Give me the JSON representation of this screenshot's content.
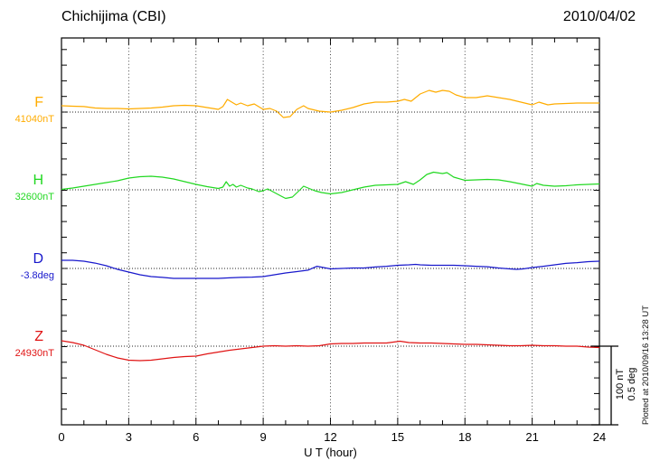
{
  "chart_data": {
    "type": "line",
    "title": "Chichijima (CBI)",
    "station_code": "CBI",
    "date": "2010/04/02",
    "xlabel": "U T (hour)",
    "xlim": [
      0,
      24
    ],
    "x_ticks": [
      0,
      3,
      6,
      9,
      12,
      15,
      18,
      21,
      24
    ],
    "x_minor_step_hours": 1,
    "grid": "dotted vertical lines every 3 hours; dotted horizontal baseline per trace",
    "legend_position": "left margin, one colored label per trace",
    "scale": {
      "division_nT": 100,
      "division_deg": 0.5,
      "labels": [
        "100 nT",
        "0.5 deg"
      ]
    },
    "annotations": {
      "scale_bar": [
        "100 nT",
        "0.5 deg"
      ],
      "plotted_at": "Plotted at 2010/09/16 13:28 UT"
    },
    "series": [
      {
        "name": "F",
        "unit": "nT",
        "baseline_label": "41040nT",
        "baseline_value": 41040,
        "color": "#ffac00",
        "points": [
          [
            0,
            8.0
          ],
          [
            0.5,
            7.5
          ],
          [
            1,
            7.0
          ],
          [
            1.5,
            5.2
          ],
          [
            2,
            4.6
          ],
          [
            2.5,
            4.6
          ],
          [
            3,
            4.0
          ],
          [
            3.5,
            4.6
          ],
          [
            4,
            5.2
          ],
          [
            4.5,
            6.3
          ],
          [
            5,
            8.0
          ],
          [
            5.5,
            8.6
          ],
          [
            6,
            8.0
          ],
          [
            6.5,
            5.7
          ],
          [
            7,
            3.4
          ],
          [
            7.2,
            7.0
          ],
          [
            7.4,
            16.1
          ],
          [
            7.6,
            12.6
          ],
          [
            7.8,
            9.2
          ],
          [
            8,
            11.5
          ],
          [
            8.3,
            8.0
          ],
          [
            8.6,
            10.3
          ],
          [
            9,
            3.4
          ],
          [
            9.3,
            4.6
          ],
          [
            9.6,
            1.1
          ],
          [
            9.9,
            -6.9
          ],
          [
            10.2,
            -5.7
          ],
          [
            10.5,
            3.4
          ],
          [
            10.8,
            8.0
          ],
          [
            11,
            4.6
          ],
          [
            11.5,
            1.1
          ],
          [
            12,
            0.0
          ],
          [
            12.5,
            2.3
          ],
          [
            13,
            5.7
          ],
          [
            13.5,
            10.3
          ],
          [
            14,
            12.6
          ],
          [
            14.5,
            12.6
          ],
          [
            15,
            13.8
          ],
          [
            15.3,
            16.1
          ],
          [
            15.6,
            13.8
          ],
          [
            16,
            23.0
          ],
          [
            16.4,
            27.6
          ],
          [
            16.7,
            25.3
          ],
          [
            17,
            27.6
          ],
          [
            17.3,
            26.4
          ],
          [
            17.6,
            21.8
          ],
          [
            18,
            18.4
          ],
          [
            18.5,
            18.4
          ],
          [
            19,
            20.7
          ],
          [
            19.5,
            18.4
          ],
          [
            20,
            16.1
          ],
          [
            20.5,
            12.6
          ],
          [
            21,
            9.2
          ],
          [
            21.3,
            12.6
          ],
          [
            21.7,
            9.2
          ],
          [
            22,
            10.3
          ],
          [
            22.5,
            10.9
          ],
          [
            23,
            11.5
          ],
          [
            23.5,
            11.5
          ],
          [
            24,
            11.5
          ]
        ]
      },
      {
        "name": "H",
        "unit": "nT",
        "baseline_label": "32600nT",
        "baseline_value": 32600,
        "color": "#22d822",
        "points": [
          [
            0,
            0.6
          ],
          [
            0.5,
            2.3
          ],
          [
            1,
            4.6
          ],
          [
            1.5,
            6.9
          ],
          [
            2,
            9.2
          ],
          [
            2.5,
            11.5
          ],
          [
            3,
            14.9
          ],
          [
            3.5,
            16.7
          ],
          [
            4,
            17.2
          ],
          [
            4.5,
            16.1
          ],
          [
            5,
            13.8
          ],
          [
            5.5,
            10.3
          ],
          [
            6,
            6.9
          ],
          [
            6.5,
            4.0
          ],
          [
            7,
            1.7
          ],
          [
            7.2,
            3.4
          ],
          [
            7.35,
            10.3
          ],
          [
            7.5,
            4.6
          ],
          [
            7.65,
            6.9
          ],
          [
            7.8,
            3.4
          ],
          [
            8,
            5.7
          ],
          [
            8.3,
            2.3
          ],
          [
            8.5,
            1.1
          ],
          [
            8.8,
            -2.3
          ],
          [
            9,
            -1.1
          ],
          [
            9.2,
            1.1
          ],
          [
            9.5,
            -3.4
          ],
          [
            9.8,
            -8.0
          ],
          [
            10,
            -10.9
          ],
          [
            10.3,
            -9.2
          ],
          [
            10.6,
            -1.1
          ],
          [
            10.8,
            4.6
          ],
          [
            11,
            2.3
          ],
          [
            11.3,
            -1.1
          ],
          [
            11.6,
            -3.4
          ],
          [
            12,
            -5.2
          ],
          [
            12.5,
            -3.4
          ],
          [
            13,
            0.0
          ],
          [
            13.5,
            3.4
          ],
          [
            14,
            5.7
          ],
          [
            14.5,
            6.3
          ],
          [
            15,
            6.9
          ],
          [
            15.35,
            10.3
          ],
          [
            15.7,
            6.9
          ],
          [
            16,
            12.6
          ],
          [
            16.3,
            19.5
          ],
          [
            16.6,
            22.4
          ],
          [
            17,
            20.7
          ],
          [
            17.2,
            21.8
          ],
          [
            17.5,
            16.1
          ],
          [
            18,
            12.1
          ],
          [
            18.5,
            12.6
          ],
          [
            19,
            13.2
          ],
          [
            19.5,
            12.6
          ],
          [
            20,
            10.3
          ],
          [
            20.5,
            7.5
          ],
          [
            21,
            4.6
          ],
          [
            21.2,
            8.0
          ],
          [
            21.5,
            5.7
          ],
          [
            22,
            4.6
          ],
          [
            22.5,
            5.2
          ],
          [
            23,
            6.3
          ],
          [
            23.5,
            6.9
          ],
          [
            24,
            7.5
          ]
        ]
      },
      {
        "name": "D",
        "unit": "deg",
        "baseline_label": "-3.8deg",
        "baseline_value": -3.8,
        "color": "#1818cc",
        "points": [
          [
            0,
            0.052
          ],
          [
            0.5,
            0.052
          ],
          [
            1,
            0.046
          ],
          [
            1.5,
            0.034
          ],
          [
            2,
            0.017
          ],
          [
            2.5,
            -0.006
          ],
          [
            3,
            -0.023
          ],
          [
            3.5,
            -0.04
          ],
          [
            4,
            -0.052
          ],
          [
            4.5,
            -0.057
          ],
          [
            5,
            -0.063
          ],
          [
            5.5,
            -0.063
          ],
          [
            6,
            -0.063
          ],
          [
            6.5,
            -0.063
          ],
          [
            7,
            -0.063
          ],
          [
            7.5,
            -0.06
          ],
          [
            8,
            -0.057
          ],
          [
            8.5,
            -0.055
          ],
          [
            9,
            -0.052
          ],
          [
            9.5,
            -0.04
          ],
          [
            10,
            -0.029
          ],
          [
            10.5,
            -0.02
          ],
          [
            11,
            -0.011
          ],
          [
            11.4,
            0.014
          ],
          [
            11.8,
            0.003
          ],
          [
            12,
            -0.003
          ],
          [
            12.5,
            0.0
          ],
          [
            13,
            0.003
          ],
          [
            13.5,
            0.003
          ],
          [
            14,
            0.009
          ],
          [
            14.5,
            0.014
          ],
          [
            15,
            0.02
          ],
          [
            15.5,
            0.023
          ],
          [
            15.8,
            0.026
          ],
          [
            16,
            0.023
          ],
          [
            16.5,
            0.02
          ],
          [
            17,
            0.02
          ],
          [
            17.5,
            0.02
          ],
          [
            18,
            0.017
          ],
          [
            18.5,
            0.014
          ],
          [
            19,
            0.011
          ],
          [
            19.5,
            0.003
          ],
          [
            20,
            -0.003
          ],
          [
            20.3,
            -0.006
          ],
          [
            20.6,
            -0.003
          ],
          [
            21,
            0.006
          ],
          [
            21.5,
            0.014
          ],
          [
            22,
            0.023
          ],
          [
            22.5,
            0.032
          ],
          [
            23,
            0.037
          ],
          [
            23.5,
            0.043
          ],
          [
            24,
            0.046
          ]
        ]
      },
      {
        "name": "Z",
        "unit": "nT",
        "baseline_label": "24930nT",
        "baseline_value": 24930,
        "color": "#e01414",
        "points": [
          [
            0,
            6.9
          ],
          [
            0.5,
            4.6
          ],
          [
            1,
            1.1
          ],
          [
            1.5,
            -4.6
          ],
          [
            2,
            -10.3
          ],
          [
            2.5,
            -14.9
          ],
          [
            3,
            -17.8
          ],
          [
            3.5,
            -18.4
          ],
          [
            4,
            -17.8
          ],
          [
            4.5,
            -16.1
          ],
          [
            5,
            -14.4
          ],
          [
            5.5,
            -13.2
          ],
          [
            6,
            -12.6
          ],
          [
            6.5,
            -9.8
          ],
          [
            7,
            -7.5
          ],
          [
            7.5,
            -5.2
          ],
          [
            8,
            -3.4
          ],
          [
            8.5,
            -1.7
          ],
          [
            9,
            0.0
          ],
          [
            9.5,
            0.6
          ],
          [
            10,
            0.0
          ],
          [
            10.5,
            0.6
          ],
          [
            11,
            0.0
          ],
          [
            11.5,
            0.6
          ],
          [
            12,
            2.9
          ],
          [
            12.5,
            3.4
          ],
          [
            13,
            3.4
          ],
          [
            13.5,
            4.0
          ],
          [
            14,
            4.0
          ],
          [
            14.5,
            4.0
          ],
          [
            15.1,
            6.3
          ],
          [
            15.5,
            4.6
          ],
          [
            16,
            4.0
          ],
          [
            16.5,
            4.0
          ],
          [
            17,
            3.4
          ],
          [
            17.5,
            2.9
          ],
          [
            18,
            2.3
          ],
          [
            18.5,
            2.3
          ],
          [
            19,
            1.7
          ],
          [
            19.5,
            1.1
          ],
          [
            20,
            0.6
          ],
          [
            20.5,
            0.6
          ],
          [
            21,
            1.1
          ],
          [
            21.5,
            0.6
          ],
          [
            22,
            0.6
          ],
          [
            22.5,
            0.0
          ],
          [
            23,
            0.0
          ],
          [
            23.5,
            -1.1
          ],
          [
            24,
            -1.7
          ]
        ]
      }
    ]
  }
}
